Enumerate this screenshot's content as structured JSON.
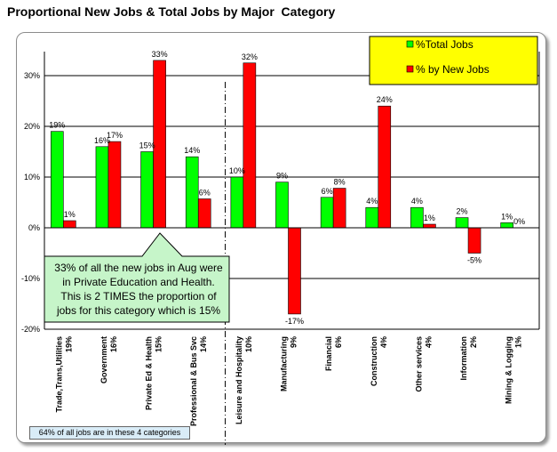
{
  "chart_data": {
    "type": "bar",
    "title": "Proportional New Jobs & Total Jobs by Major  Category",
    "categories": [
      "Trade,Trans,Utilities 19%",
      "Government 16%",
      "Private Ed & Health 15%",
      "Professional & Bus Svc 14%",
      "Leisure and Hospitality 10%",
      "Manufacturing 9%",
      "Financial 6%",
      "Construction 4%",
      "Other services 4%",
      "Information 2%",
      "Mining & Logging 1%"
    ],
    "series": [
      {
        "name": "%Total Jobs",
        "color": "#00ff00",
        "values": [
          19,
          16,
          15,
          14,
          10,
          9,
          6,
          4,
          4,
          2,
          1
        ],
        "labels": [
          "19%",
          "16%",
          "15%",
          "14%",
          "10%",
          "9%",
          "6%",
          "4%",
          "4%",
          "2%",
          "1%"
        ]
      },
      {
        "name": "% by New Jobs",
        "color": "#ff0000",
        "values": [
          1.4,
          17,
          33,
          5.7,
          32.5,
          -17,
          7.8,
          24,
          0.7,
          -5,
          0
        ],
        "labels": [
          "1%",
          "17%",
          "33%",
          "6%",
          "32%",
          "-17%",
          "8%",
          "24%",
          "1%",
          "-5%",
          "0%"
        ]
      }
    ],
    "ylim": [
      -20,
      35
    ],
    "yticks": [
      30,
      20,
      10,
      0,
      -10,
      -20
    ],
    "ytick_labels": [
      "30%",
      "20%",
      "10%",
      "0%",
      "-10%",
      "-20%"
    ],
    "grid": true,
    "legend": "top-right",
    "legend_bg": "#ffff00",
    "callout": {
      "lines": [
        "33% of all the new jobs in Aug were",
        "in Private Education and Health.",
        "This is  2 TIMES the proportion of",
        "jobs for this category which is 15%"
      ],
      "bg": "#c6f5c9"
    },
    "footnote": "64% of all jobs are in these 4 categories"
  }
}
